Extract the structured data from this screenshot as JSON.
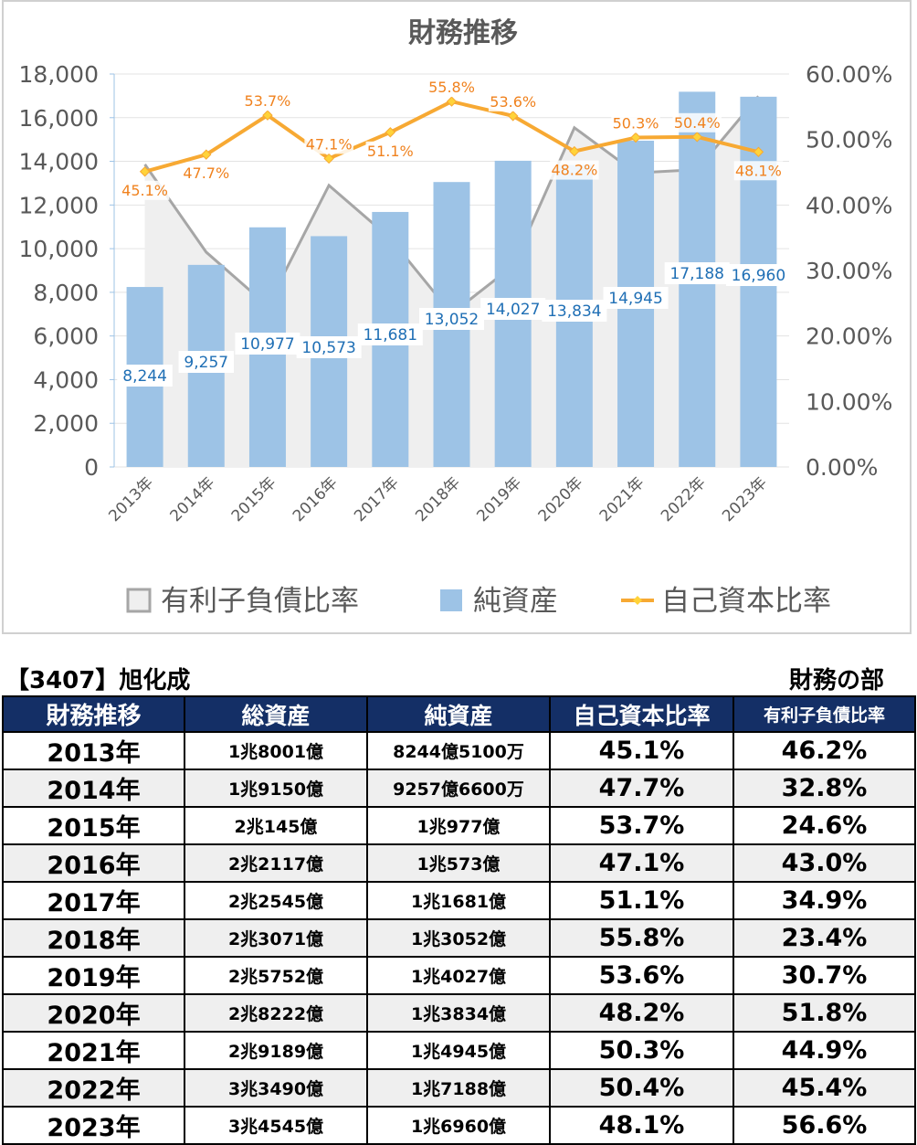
{
  "chart_data": {
    "type": "bar",
    "title": "財務推移",
    "categories": [
      "2013年",
      "2014年",
      "2015年",
      "2016年",
      "2017年",
      "2018年",
      "2019年",
      "2020年",
      "2021年",
      "2022年",
      "2023年"
    ],
    "series": [
      {
        "name": "有利子負債比率",
        "kind": "area",
        "axis": "right",
        "values": [
          46.2,
          32.8,
          24.6,
          43.0,
          34.9,
          23.4,
          30.7,
          51.8,
          44.9,
          45.4,
          56.6
        ],
        "color": "#a6a6a6"
      },
      {
        "name": "純資産",
        "kind": "bar",
        "axis": "left",
        "values": [
          8244,
          9257,
          10977,
          10573,
          11681,
          13052,
          14027,
          13834,
          14945,
          17188,
          16960
        ],
        "labels": [
          "8,244",
          "9,257",
          "10,977",
          "10,573",
          "11,681",
          "13,052",
          "14,027",
          "13,834",
          "14,945",
          "17,188",
          "16,960"
        ],
        "color": "#9dc3e6"
      },
      {
        "name": "自己資本比率",
        "kind": "line",
        "axis": "right",
        "values": [
          45.1,
          47.7,
          53.7,
          47.1,
          51.1,
          55.8,
          53.6,
          48.2,
          50.3,
          50.4,
          48.1
        ],
        "labels": [
          "45.1%",
          "47.7%",
          "53.7%",
          "47.1%",
          "51.1%",
          "55.8%",
          "53.6%",
          "48.2%",
          "50.3%",
          "50.4%",
          "48.1%"
        ],
        "color": "#f7a933"
      }
    ],
    "y_left": {
      "min": 0,
      "max": 18000,
      "ticks": [
        "0",
        "2,000",
        "4,000",
        "6,000",
        "8,000",
        "10,000",
        "12,000",
        "14,000",
        "16,000",
        "18,000"
      ]
    },
    "y_right": {
      "min": 0,
      "max": 60,
      "ticks": [
        "0.00%",
        "10.00%",
        "20.00%",
        "30.00%",
        "40.00%",
        "50.00%",
        "60.00%"
      ]
    },
    "legend_position": "bottom",
    "grid": true
  },
  "company": "【3407】旭化成",
  "section": "財務の部",
  "table": {
    "headers": [
      "財務推移",
      "総資産",
      "純資産",
      "自己資本比率",
      "有利子負債比率"
    ],
    "rows": [
      [
        "2013年",
        "1兆8001億",
        "8244億5100万",
        "45.1%",
        "46.2%"
      ],
      [
        "2014年",
        "1兆9150億",
        "9257億6600万",
        "47.7%",
        "32.8%"
      ],
      [
        "2015年",
        "2兆145億",
        "1兆977億",
        "53.7%",
        "24.6%"
      ],
      [
        "2016年",
        "2兆2117億",
        "1兆573億",
        "47.1%",
        "43.0%"
      ],
      [
        "2017年",
        "2兆2545億",
        "1兆1681億",
        "51.1%",
        "34.9%"
      ],
      [
        "2018年",
        "2兆3071億",
        "1兆3052億",
        "55.8%",
        "23.4%"
      ],
      [
        "2019年",
        "2兆5752億",
        "1兆4027億",
        "53.6%",
        "30.7%"
      ],
      [
        "2020年",
        "2兆8222億",
        "1兆3834億",
        "48.2%",
        "51.8%"
      ],
      [
        "2021年",
        "2兆9189億",
        "1兆4945億",
        "50.3%",
        "44.9%"
      ],
      [
        "2022年",
        "3兆3490億",
        "1兆7188億",
        "50.4%",
        "45.4%"
      ],
      [
        "2023年",
        "3兆4545億",
        "1兆6960億",
        "48.1%",
        "56.6%"
      ]
    ]
  }
}
